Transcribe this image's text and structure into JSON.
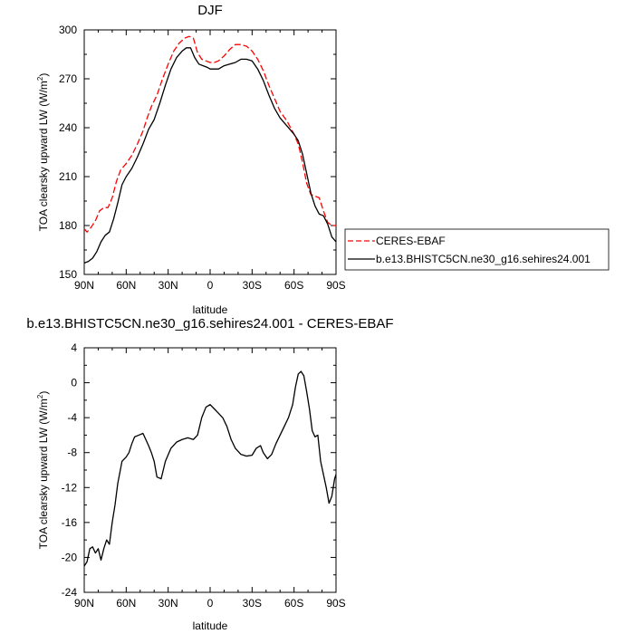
{
  "chart_data": [
    {
      "type": "line",
      "title": "DJF",
      "xlabel": "latitude",
      "ylabel": "TOA clearsky upward LW (W/m",
      "ylabel_sup": "2",
      "ylabel_close": ")",
      "xlim": [
        90,
        -90
      ],
      "ylim": [
        150,
        300
      ],
      "x_ticks": [
        90,
        60,
        30,
        0,
        -30,
        -60,
        -90
      ],
      "x_tick_labels": [
        "90N",
        "60N",
        "30N",
        "0",
        "30S",
        "60S",
        "90S"
      ],
      "y_ticks": [
        150,
        180,
        210,
        240,
        270,
        300
      ],
      "y_tick_labels": [
        "150",
        "180",
        "210",
        "240",
        "270",
        "300"
      ],
      "legend_position": "right",
      "series": [
        {
          "name": "CERES-EBAF",
          "color": "#ff0000",
          "dash": "dashed",
          "points": [
            [
              90,
              178
            ],
            [
              88,
              176
            ],
            [
              85,
              179
            ],
            [
              82,
              183
            ],
            [
              79,
              189
            ],
            [
              76,
              191
            ],
            [
              73,
              191
            ],
            [
              70,
              197
            ],
            [
              67,
              207
            ],
            [
              64,
              214
            ],
            [
              60,
              218
            ],
            [
              56,
              223
            ],
            [
              52,
              230
            ],
            [
              48,
              238
            ],
            [
              45,
              246
            ],
            [
              42,
              253
            ],
            [
              38,
              260
            ],
            [
              34,
              270
            ],
            [
              30,
              279
            ],
            [
              26,
              287
            ],
            [
              22,
              292
            ],
            [
              18,
              295
            ],
            [
              15,
              296
            ],
            [
              12,
              295
            ],
            [
              9,
              286
            ],
            [
              6,
              282
            ],
            [
              3,
              281
            ],
            [
              0,
              280
            ],
            [
              -3,
              280
            ],
            [
              -6,
              281
            ],
            [
              -10,
              284
            ],
            [
              -14,
              288
            ],
            [
              -18,
              291
            ],
            [
              -22,
              291
            ],
            [
              -26,
              290
            ],
            [
              -30,
              287
            ],
            [
              -34,
              282
            ],
            [
              -38,
              275
            ],
            [
              -42,
              266
            ],
            [
              -46,
              258
            ],
            [
              -50,
              250
            ],
            [
              -55,
              244
            ],
            [
              -60,
              236
            ],
            [
              -63,
              230
            ],
            [
              -66,
              219
            ],
            [
              -69,
              206
            ],
            [
              -72,
              199
            ],
            [
              -75,
              198
            ],
            [
              -78,
              197
            ],
            [
              -81,
              189
            ],
            [
              -84,
              182
            ],
            [
              -87,
              180
            ],
            [
              -90,
              180
            ]
          ]
        },
        {
          "name": "b.e13.BHISTC5CN.ne30_g16.sehires24.001",
          "color": "#000000",
          "dash": "solid",
          "points": [
            [
              90,
              157
            ],
            [
              87,
              158
            ],
            [
              84,
              160
            ],
            [
              81,
              164
            ],
            [
              78,
              170
            ],
            [
              75,
              174
            ],
            [
              72,
              176
            ],
            [
              69,
              184
            ],
            [
              66,
              194
            ],
            [
              63,
              205
            ],
            [
              60,
              210
            ],
            [
              56,
              215
            ],
            [
              52,
              222
            ],
            [
              48,
              230
            ],
            [
              44,
              239
            ],
            [
              40,
              245
            ],
            [
              36,
              255
            ],
            [
              32,
              266
            ],
            [
              28,
              276
            ],
            [
              24,
              283
            ],
            [
              20,
              287
            ],
            [
              17,
              289
            ],
            [
              14,
              289
            ],
            [
              11,
              283
            ],
            [
              8,
              279
            ],
            [
              5,
              278
            ],
            [
              2,
              277
            ],
            [
              0,
              276
            ],
            [
              -3,
              276
            ],
            [
              -6,
              276
            ],
            [
              -10,
              278
            ],
            [
              -14,
              279
            ],
            [
              -18,
              280
            ],
            [
              -22,
              282
            ],
            [
              -26,
              282
            ],
            [
              -30,
              281
            ],
            [
              -34,
              276
            ],
            [
              -38,
              269
            ],
            [
              -42,
              260
            ],
            [
              -46,
              252
            ],
            [
              -50,
              246
            ],
            [
              -55,
              241
            ],
            [
              -60,
              236
            ],
            [
              -63,
              232
            ],
            [
              -66,
              224
            ],
            [
              -69,
              212
            ],
            [
              -72,
              200
            ],
            [
              -75,
              192
            ],
            [
              -78,
              187
            ],
            [
              -81,
              186
            ],
            [
              -84,
              181
            ],
            [
              -87,
              173
            ],
            [
              -90,
              170
            ]
          ]
        }
      ]
    },
    {
      "type": "line",
      "title": "b.e13.BHISTC5CN.ne30_g16.sehires24.001 - CERES-EBAF",
      "xlabel": "latitude",
      "ylabel": "TOA clearsky upward LW (W/m",
      "ylabel_sup": "2",
      "ylabel_close": ")",
      "xlim": [
        90,
        -90
      ],
      "ylim": [
        -24,
        4
      ],
      "x_ticks": [
        90,
        60,
        30,
        0,
        -30,
        -60,
        -90
      ],
      "x_tick_labels": [
        "90N",
        "60N",
        "30N",
        "0",
        "30S",
        "60S",
        "90S"
      ],
      "y_ticks": [
        -24,
        -20,
        -16,
        -12,
        -8,
        -4,
        0,
        4
      ],
      "y_tick_labels": [
        "-24",
        "-20",
        "-16",
        "-12",
        "-8",
        "-4",
        "0",
        "4"
      ],
      "series": [
        {
          "color": "#000000",
          "dash": "solid",
          "points": [
            [
              90,
              -21
            ],
            [
              88,
              -20.5
            ],
            [
              86,
              -19
            ],
            [
              84,
              -18.8
            ],
            [
              82,
              -19.5
            ],
            [
              80,
              -19
            ],
            [
              78,
              -20.3
            ],
            [
              76,
              -19
            ],
            [
              74,
              -18
            ],
            [
              72,
              -18.5
            ],
            [
              70,
              -16
            ],
            [
              68,
              -14
            ],
            [
              66,
              -11.5
            ],
            [
              63,
              -9
            ],
            [
              60,
              -8.5
            ],
            [
              58,
              -8
            ],
            [
              56,
              -7
            ],
            [
              54,
              -6.2
            ],
            [
              51,
              -6
            ],
            [
              48,
              -5.8
            ],
            [
              46,
              -6.5
            ],
            [
              44,
              -7.2
            ],
            [
              42,
              -8
            ],
            [
              40,
              -9
            ],
            [
              38,
              -10.8
            ],
            [
              35,
              -11
            ],
            [
              32,
              -9
            ],
            [
              28,
              -7.5
            ],
            [
              24,
              -6.8
            ],
            [
              20,
              -6.5
            ],
            [
              16,
              -6.3
            ],
            [
              12,
              -6.5
            ],
            [
              9,
              -6
            ],
            [
              6,
              -4
            ],
            [
              3,
              -2.8
            ],
            [
              0,
              -2.5
            ],
            [
              -3,
              -3
            ],
            [
              -6,
              -3.5
            ],
            [
              -9,
              -4
            ],
            [
              -12,
              -5
            ],
            [
              -15,
              -6.5
            ],
            [
              -18,
              -7.5
            ],
            [
              -22,
              -8.2
            ],
            [
              -26,
              -8.4
            ],
            [
              -30,
              -8.3
            ],
            [
              -33,
              -7.5
            ],
            [
              -36,
              -7.2
            ],
            [
              -38,
              -8
            ],
            [
              -41,
              -8.7
            ],
            [
              -44,
              -8.2
            ],
            [
              -47,
              -7
            ],
            [
              -50,
              -6
            ],
            [
              -53,
              -5
            ],
            [
              -56,
              -4
            ],
            [
              -59,
              -2.5
            ],
            [
              -61,
              -0.5
            ],
            [
              -63,
              1
            ],
            [
              -65,
              1.3
            ],
            [
              -67,
              0.8
            ],
            [
              -69,
              -1
            ],
            [
              -71,
              -3
            ],
            [
              -73,
              -5.5
            ],
            [
              -75,
              -6.2
            ],
            [
              -77,
              -6
            ],
            [
              -79,
              -9
            ],
            [
              -81,
              -10.5
            ],
            [
              -83,
              -12
            ],
            [
              -85,
              -13.8
            ],
            [
              -87,
              -13
            ],
            [
              -89,
              -11
            ],
            [
              -90,
              -10.5
            ]
          ]
        }
      ]
    }
  ]
}
